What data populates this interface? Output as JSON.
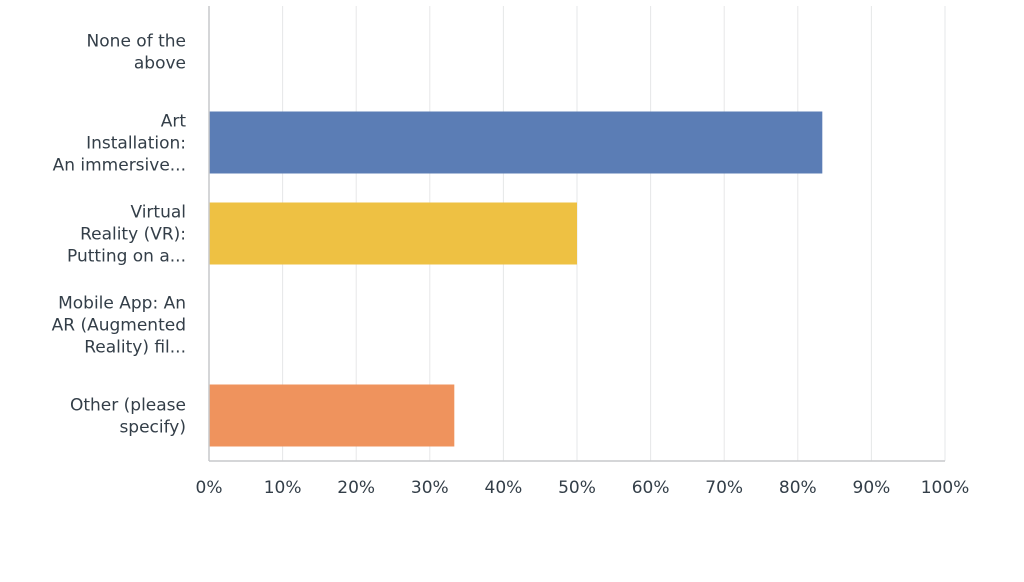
{
  "chart_data": {
    "type": "bar",
    "orientation": "horizontal",
    "categories": [
      [
        "None of the",
        "above"
      ],
      [
        "Art",
        "Installation:",
        "An immersive..."
      ],
      [
        "Virtual",
        "Reality (VR):",
        "Putting on a..."
      ],
      [
        "Mobile App: An",
        "AR (Augmented",
        "Reality) fil..."
      ],
      [
        "Other (please",
        "specify)"
      ]
    ],
    "values": [
      0,
      83.33,
      50.0,
      0,
      33.33
    ],
    "colors": [
      "#5b7db5",
      "#5b7db5",
      "#eec143",
      "#5b7db5",
      "#ef935d"
    ],
    "xlim": [
      0,
      100
    ],
    "ticks": [
      "0%",
      "10%",
      "20%",
      "30%",
      "40%",
      "50%",
      "60%",
      "70%",
      "80%",
      "90%",
      "100%"
    ],
    "grid": true,
    "title": "",
    "xlabel": "",
    "ylabel": ""
  }
}
